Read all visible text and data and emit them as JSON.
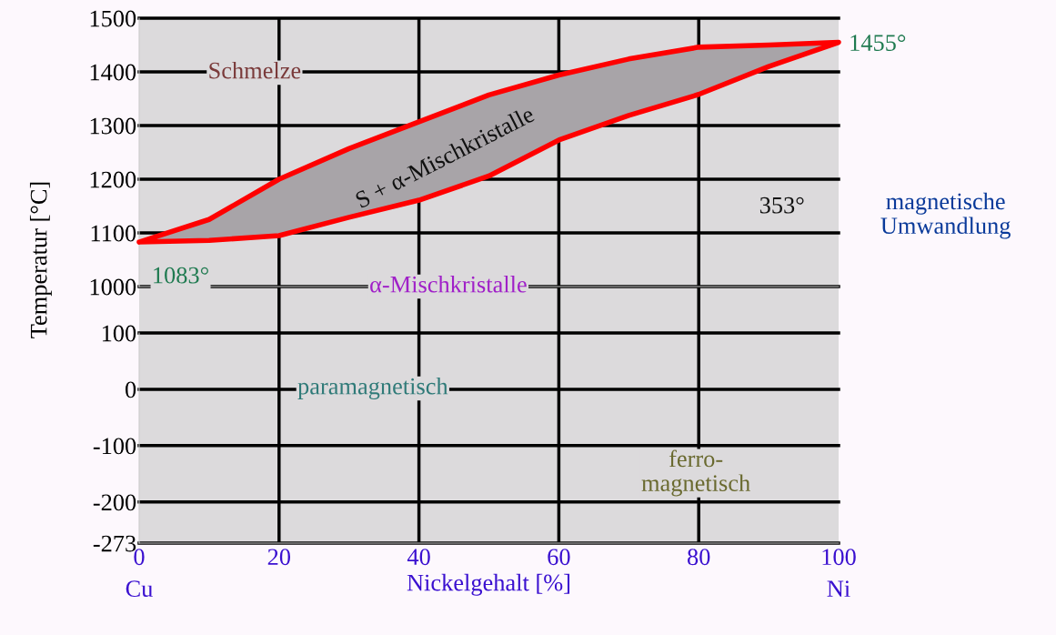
{
  "chart_data": [
    {
      "type": "area",
      "series": [
        {
          "color": "#ff0000",
          "x": [
            0,
            10,
            20,
            30,
            40,
            50,
            60,
            70,
            80,
            90,
            100,
            90,
            80,
            70,
            60,
            50,
            40,
            30,
            20,
            10,
            0
          ],
          "values": [
            1083,
            1125,
            1200,
            1257,
            1307,
            1357,
            1394,
            1424,
            1446,
            1450,
            1455,
            1410,
            1358,
            1319,
            1273,
            1206,
            1161,
            1129,
            1095,
            1086,
            1083
          ]
        }
      ],
      "ylabel": "Temperatur [°C]",
      "xlim": [
        0,
        100
      ],
      "xticks": [
        0,
        20,
        40,
        60,
        80,
        100
      ],
      "ylim": [
        1000,
        1500
      ],
      "yticks": [
        1000,
        1100,
        1200,
        1300,
        1400,
        1500
      ],
      "tick_labels": "y",
      "grid": true,
      "annotations": [
        "Schmelze",
        "S + α-Mischkristalle",
        "α-Mischkristalle",
        {
          "text": "1083°",
          "x": 0,
          "y": 1083
        },
        {
          "text": "1455°",
          "x": 100,
          "y": 1455
        },
        "353°",
        "magnetische\nUmwandlung"
      ]
    },
    {
      "type": "line",
      "xlabel": "Nickelgehalt [%]",
      "xlim": [
        0,
        100
      ],
      "xticks": [
        {
          "value": 0,
          "label": "0\nCu"
        },
        20,
        40,
        60,
        80,
        {
          "value": 100,
          "label": "100\nNi"
        }
      ],
      "ylim": [
        -273,
        100
      ],
      "yticks": [
        -273,
        -200,
        -100,
        0,
        100
      ],
      "grid": true,
      "annotations": [
        "paramagnetisch",
        "ferro-\nmagnetisch"
      ]
    }
  ]
}
